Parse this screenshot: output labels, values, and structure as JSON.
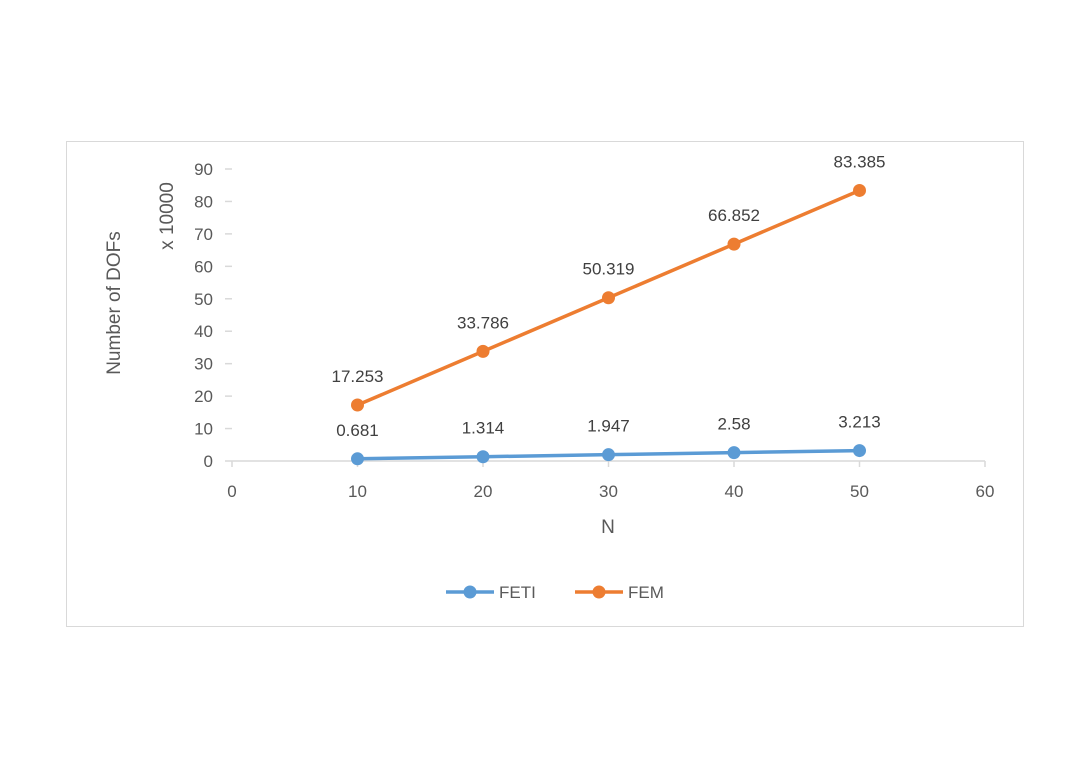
{
  "chart_data": {
    "type": "line",
    "x_axis": {
      "label": "N",
      "min": 0,
      "max": 60,
      "ticks": [
        0,
        10,
        20,
        30,
        40,
        50,
        60
      ]
    },
    "y_axis": {
      "label": "Number of DOFs",
      "unit": "x 10000",
      "min": 0,
      "max": 90,
      "ticks": [
        0,
        10,
        20,
        30,
        40,
        50,
        60,
        70,
        80,
        90
      ]
    },
    "x": [
      10,
      20,
      30,
      40,
      50
    ],
    "series": [
      {
        "name": "FETI",
        "color": "#5b9bd5",
        "values": [
          0.681,
          1.314,
          1.947,
          2.58,
          3.213
        ],
        "labels": [
          "0.681",
          "1.314",
          "1.947",
          "2.58",
          "3.213"
        ]
      },
      {
        "name": "FEM",
        "color": "#ed7d31",
        "values": [
          17.253,
          33.786,
          50.319,
          66.852,
          83.385
        ],
        "labels": [
          "17.253",
          "33.786",
          "50.319",
          "66.852",
          "83.385"
        ]
      }
    ],
    "grid": false,
    "legend_position": "bottom"
  }
}
